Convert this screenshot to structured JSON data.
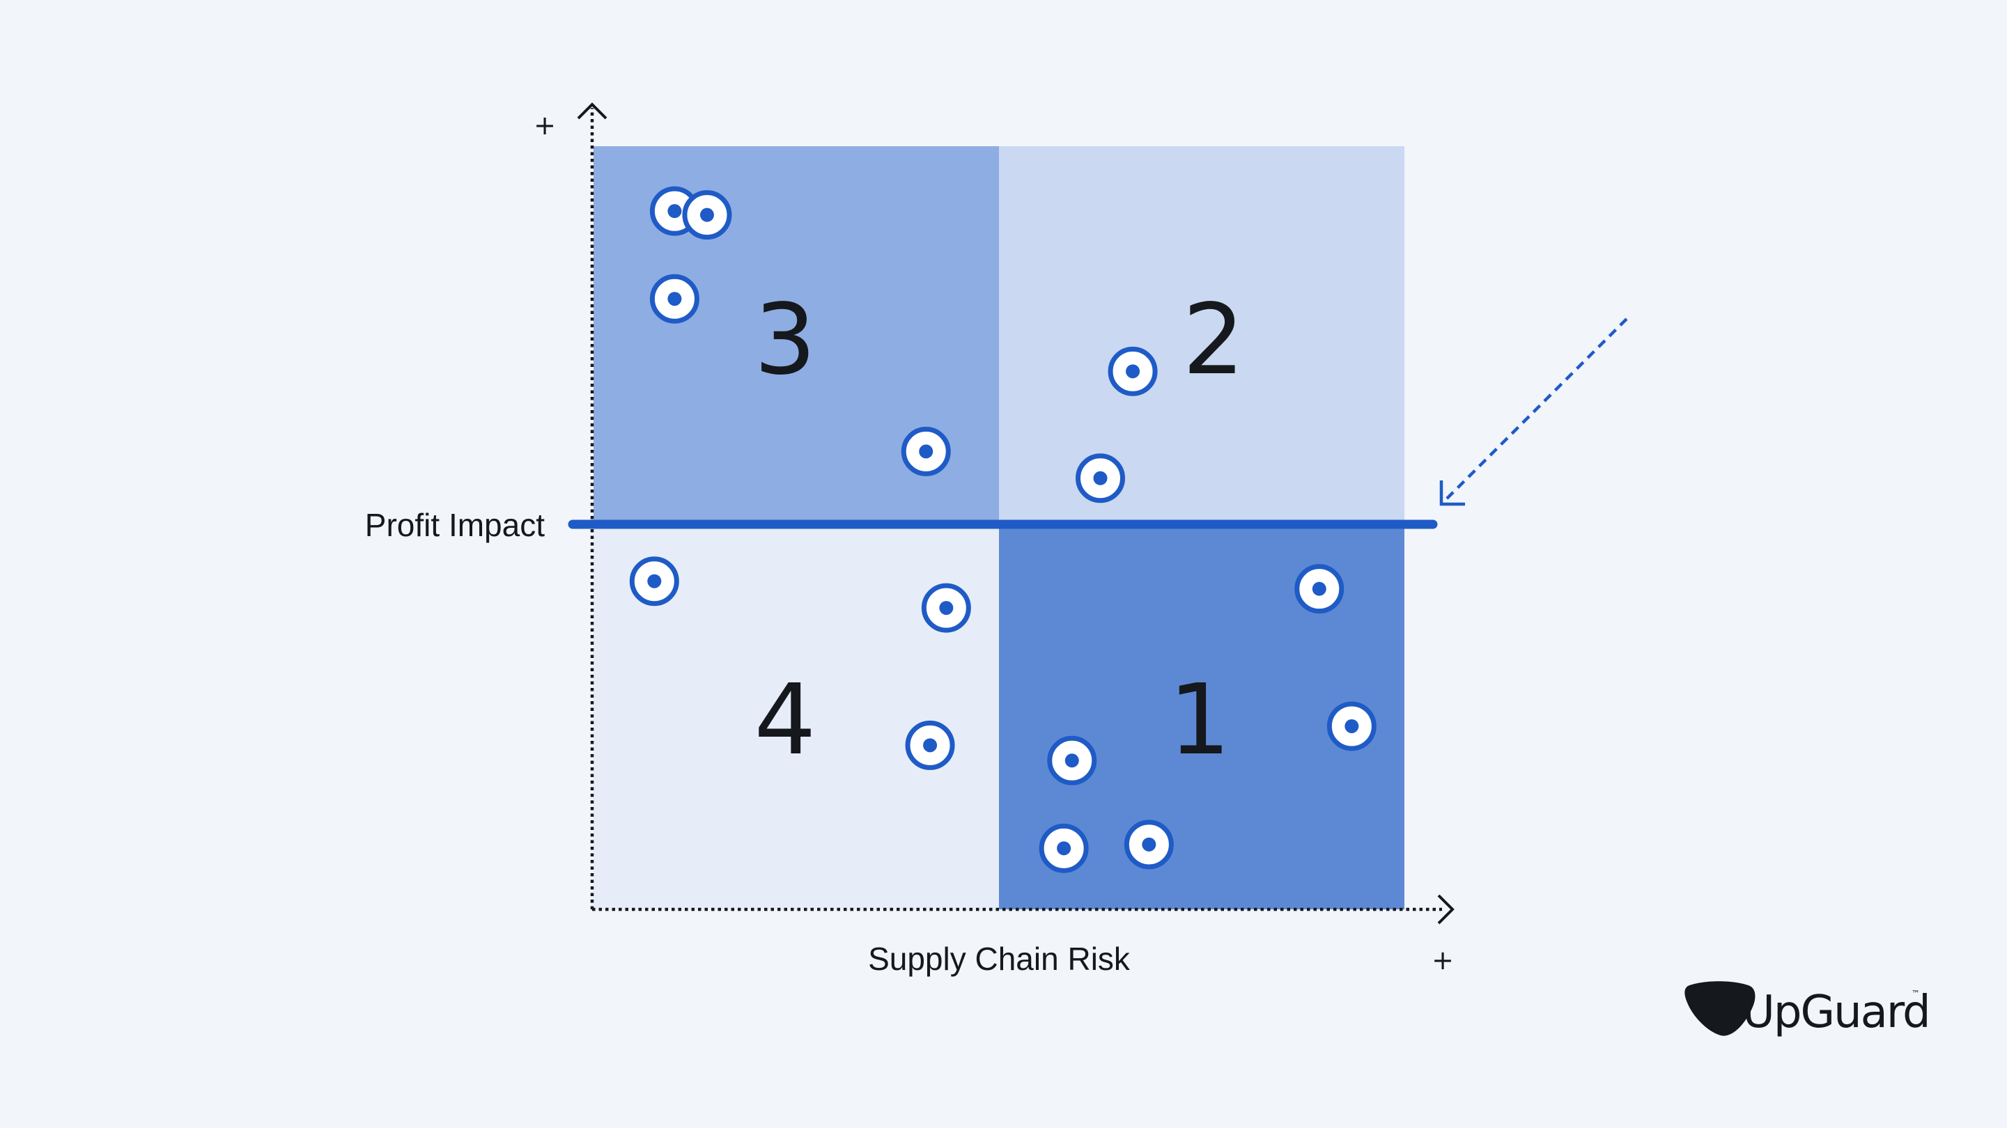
{
  "colors": {
    "background": "#f2f5fa",
    "quadrant_1": "#5d89d4",
    "quadrant_2": "#cad8f1",
    "quadrant_3": "#8eade2",
    "quadrant_4": "#e6edf8",
    "accent": "#1f5bc6",
    "text": "#15181d"
  },
  "axes": {
    "x_label": "Supply Chain Risk",
    "y_label": "Profit Impact",
    "x_plus": "+",
    "y_plus": "+"
  },
  "quadrants": [
    {
      "id": "1",
      "label": "1",
      "position": "bottom-right"
    },
    {
      "id": "2",
      "label": "2",
      "position": "top-right"
    },
    {
      "id": "3",
      "label": "3",
      "position": "top-left"
    },
    {
      "id": "4",
      "label": "4",
      "position": "bottom-left"
    }
  ],
  "chart_data": {
    "type": "scatter",
    "title": "",
    "xlabel": "Supply Chain Risk",
    "ylabel": "Profit Impact",
    "xlim": [
      0,
      100
    ],
    "ylim": [
      0,
      100
    ],
    "divider_x": 50,
    "divider_y": 50.5,
    "points": [
      {
        "x": 10,
        "y": 91.5,
        "quadrant": "3"
      },
      {
        "x": 14,
        "y": 91,
        "quadrant": "3"
      },
      {
        "x": 10,
        "y": 80,
        "quadrant": "3"
      },
      {
        "x": 41,
        "y": 60,
        "quadrant": "3"
      },
      {
        "x": 66.5,
        "y": 70.5,
        "quadrant": "2"
      },
      {
        "x": 62.5,
        "y": 56.5,
        "quadrant": "2"
      },
      {
        "x": 7.5,
        "y": 43,
        "quadrant": "4"
      },
      {
        "x": 43.5,
        "y": 39.5,
        "quadrant": "4"
      },
      {
        "x": 41.5,
        "y": 21.5,
        "quadrant": "4"
      },
      {
        "x": 89.5,
        "y": 42,
        "quadrant": "1"
      },
      {
        "x": 93.5,
        "y": 24,
        "quadrant": "1"
      },
      {
        "x": 59,
        "y": 19.5,
        "quadrant": "1"
      },
      {
        "x": 68.5,
        "y": 8.5,
        "quadrant": "1"
      },
      {
        "x": 58,
        "y": 8,
        "quadrant": "1"
      }
    ]
  },
  "brand": {
    "name": "UpGuard",
    "trademark": "™",
    "logo_icon": "guitar-pick-shield-icon"
  }
}
